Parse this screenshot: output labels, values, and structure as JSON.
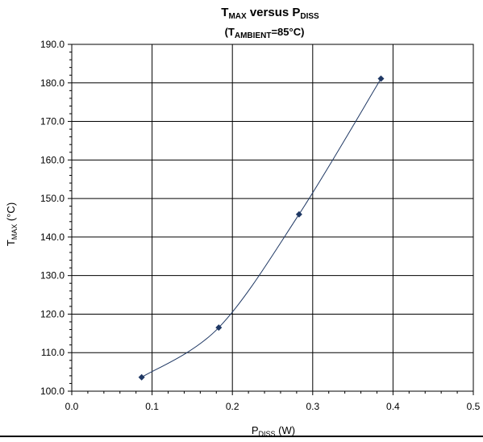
{
  "chart_data": {
    "type": "line",
    "title": {
      "prefix": "T",
      "prefix_sub": "MAX",
      "mid": " versus P",
      "mid_sub": "DISS"
    },
    "subtitle": {
      "prefix": "(T",
      "prefix_sub": "AMBIENT",
      "suffix": "=85°C)"
    },
    "xlabel": {
      "prefix": "P",
      "sub": "DISS",
      "suffix": " (W)"
    },
    "ylabel": {
      "prefix": "T",
      "sub": "MAX",
      "suffix": " (°C)"
    },
    "xlim": [
      0.0,
      0.5
    ],
    "ylim": [
      100.0,
      190.0
    ],
    "x_ticks": [
      "0.0",
      "0.1",
      "0.2",
      "0.3",
      "0.4",
      "0.5"
    ],
    "y_ticks": [
      "100.0",
      "110.0",
      "120.0",
      "130.0",
      "140.0",
      "150.0",
      "160.0",
      "170.0",
      "180.0",
      "190.0"
    ],
    "grid": true,
    "smooth": true,
    "marker": "diamond",
    "series": [
      {
        "name": "",
        "x": [
          0.087,
          0.183,
          0.283,
          0.385
        ],
        "y": [
          103.6,
          116.5,
          145.9,
          181.1
        ],
        "color": "#1f3864"
      }
    ]
  }
}
